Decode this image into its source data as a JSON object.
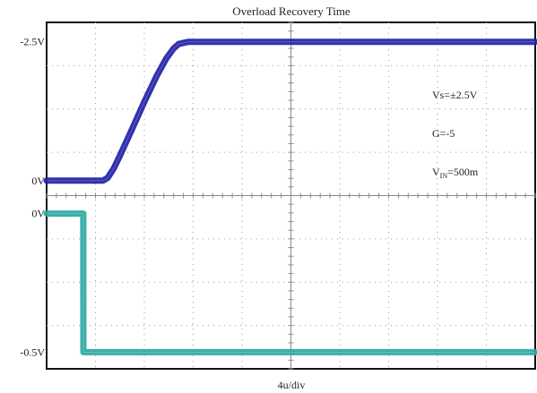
{
  "chart_data": {
    "type": "line",
    "title": "Overload Recovery Time",
    "xlabel": "4u/div",
    "x_divisions": 10,
    "x_unit": "us",
    "x_per_div": 4,
    "grid": true,
    "annotations": [
      {
        "key": "vs",
        "text": "Vs=±2.5V"
      },
      {
        "key": "g",
        "text": "G=-5"
      },
      {
        "key": "vin_prefix",
        "text": "V"
      },
      {
        "key": "vin_sub",
        "text": "IN"
      },
      {
        "key": "vin_suffix",
        "text": "=500m"
      }
    ],
    "series": [
      {
        "id": "output",
        "color": "#1f1fa8",
        "y_labels": [
          "-2.5V",
          "0V"
        ],
        "y_label_values": [
          2.5,
          0
        ],
        "ylim": [
          -0.27,
          2.85
        ],
        "x": [
          0,
          1.5,
          4.6,
          5.0,
          5.5,
          6.0,
          7.0,
          8.0,
          9.0,
          9.8,
          10.4,
          10.8,
          11.6,
          12.4,
          40
        ],
        "y": [
          0,
          0,
          0,
          0.05,
          0.22,
          0.45,
          0.93,
          1.42,
          1.88,
          2.2,
          2.38,
          2.46,
          2.5,
          2.5,
          2.5
        ]
      },
      {
        "id": "input",
        "color": "#2aa8a2",
        "y_labels": [
          "0V",
          "-0.5V"
        ],
        "y_label_values": [
          0,
          -0.5
        ],
        "ylim": [
          -0.56,
          0.065
        ],
        "x": [
          0,
          3.0,
          3.01,
          40
        ],
        "y": [
          0,
          0,
          -0.5,
          -0.5
        ]
      }
    ]
  }
}
